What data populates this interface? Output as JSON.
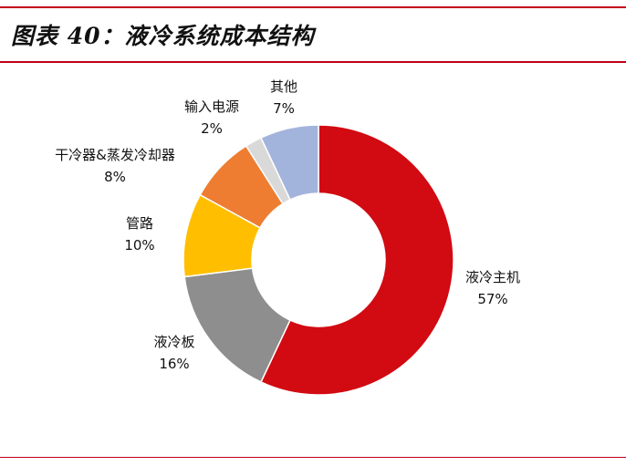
{
  "header": {
    "title": "图表 40：液冷系统成本结构"
  },
  "chart_data": {
    "type": "pie",
    "donut": true,
    "categories": [
      "液冷主机",
      "液冷板",
      "管路",
      "干冷器&蒸发冷却器",
      "输入电源",
      "其他"
    ],
    "values": [
      57,
      16,
      10,
      8,
      2,
      7
    ],
    "value_labels": [
      "57%",
      "16%",
      "10%",
      "8%",
      "2%",
      "7%"
    ],
    "colors": [
      "#d20a12",
      "#8e8e8e",
      "#ffbf00",
      "#ee7d31",
      "#d9d9d9",
      "#a3b4dc"
    ],
    "start": "12 o'clock",
    "direction": "clockwise",
    "labels_outside": true,
    "legend": "none"
  }
}
